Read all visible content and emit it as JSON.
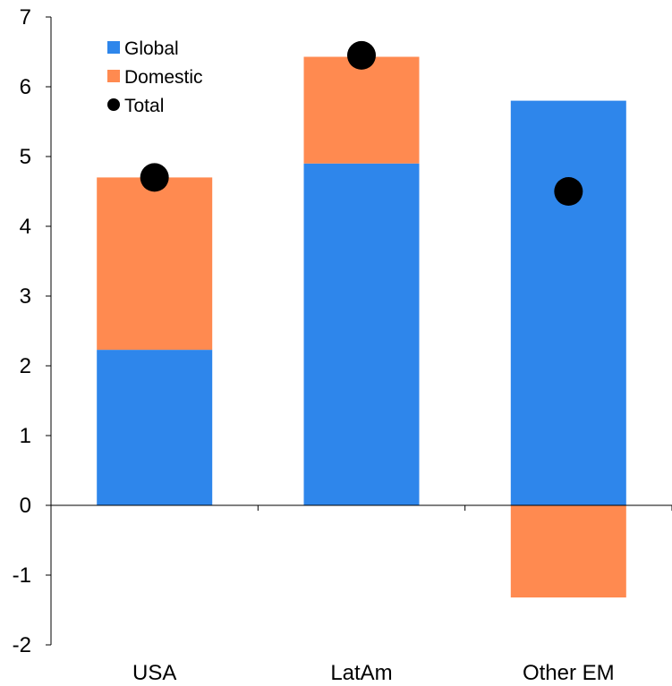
{
  "chart_data": {
    "type": "bar",
    "stacked": true,
    "categories": [
      "USA",
      "LatAm",
      "Other EM"
    ],
    "series": [
      {
        "name": "Global",
        "values": [
          2.23,
          4.9,
          5.8
        ],
        "color": "#2E86EB"
      },
      {
        "name": "Domestic",
        "values": [
          2.47,
          1.53,
          -1.32
        ],
        "color": "#FF8A50"
      }
    ],
    "points": {
      "name": "Total",
      "values": [
        4.7,
        6.45,
        4.5
      ],
      "color": "#000000"
    },
    "ylim": [
      -2,
      7
    ],
    "yticks": [
      "-2",
      "-1",
      "0",
      "1",
      "2",
      "3",
      "4",
      "5",
      "6",
      "7"
    ],
    "title": "",
    "xlabel": "",
    "ylabel": "",
    "legend": {
      "position": "top-left",
      "entries": [
        "Global",
        "Domestic",
        "Total"
      ]
    },
    "grid": false
  }
}
